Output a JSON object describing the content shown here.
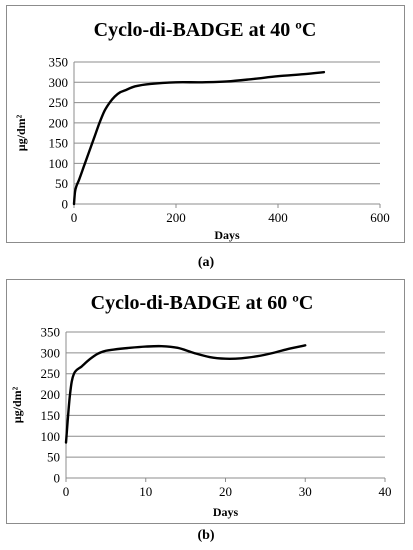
{
  "chart_data": [
    {
      "type": "line",
      "title": "Cyclo-di-BADGE at 40 ºC",
      "xlabel": "Days",
      "ylabel": "µg/dm²",
      "xlim": [
        0,
        600
      ],
      "ylim": [
        0,
        350
      ],
      "xticks": [
        "0",
        "200",
        "400",
        "600"
      ],
      "yticks": [
        "0",
        "50",
        "100",
        "150",
        "200",
        "250",
        "300",
        "350"
      ],
      "grid": "horizontal",
      "legend": "none",
      "line_color": "#000000",
      "x": [
        0,
        2,
        5,
        10,
        20,
        30,
        40,
        50,
        60,
        70,
        80,
        90,
        100,
        120,
        150,
        200,
        250,
        300,
        350,
        400,
        450,
        490
      ],
      "y": [
        0,
        30,
        45,
        60,
        95,
        130,
        165,
        200,
        230,
        250,
        265,
        275,
        280,
        290,
        296,
        300,
        300,
        302,
        308,
        315,
        320,
        325
      ]
    },
    {
      "type": "line",
      "title": "Cyclo-di-BADGE at 60 ºC",
      "xlabel": "Days",
      "ylabel": "µg/dm²",
      "xlim": [
        0,
        40
      ],
      "ylim": [
        0,
        350
      ],
      "xticks": [
        "0",
        "10",
        "20",
        "30",
        "40"
      ],
      "yticks": [
        "0",
        "50",
        "100",
        "150",
        "200",
        "250",
        "300",
        "350"
      ],
      "grid": "horizontal",
      "legend": "none",
      "line_color": "#000000",
      "x": [
        0,
        0.5,
        1,
        2,
        3,
        4,
        5,
        6,
        8,
        10,
        12,
        14,
        16,
        18,
        20,
        22,
        24,
        26,
        28,
        30
      ],
      "y": [
        85,
        200,
        250,
        268,
        285,
        298,
        305,
        308,
        312,
        315,
        316,
        312,
        300,
        290,
        286,
        287,
        292,
        300,
        310,
        318
      ]
    }
  ],
  "captions": {
    "a": "(a)",
    "b": "(b)"
  }
}
